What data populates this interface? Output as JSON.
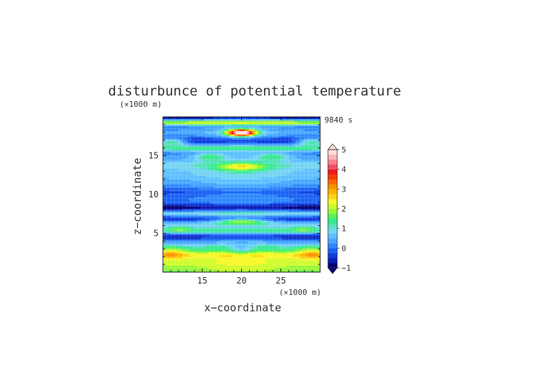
{
  "chart_data": {
    "type": "heatmap",
    "title": "disturbunce of potential temperature",
    "time_label": "9840 s",
    "xlabel": "x−coordinate",
    "ylabel": "z−coordinate",
    "x_unit": "(×1000 m)",
    "y_unit": "(×1000 m)",
    "xlim": [
      10,
      30
    ],
    "ylim": [
      0,
      20
    ],
    "x_ticks": [
      {
        "value": 15,
        "label": "15"
      },
      {
        "value": 20,
        "label": "20"
      },
      {
        "value": 25,
        "label": "25"
      }
    ],
    "y_ticks": [
      {
        "value": 5,
        "label": "5"
      },
      {
        "value": 10,
        "label": "10"
      },
      {
        "value": 15,
        "label": "15"
      }
    ],
    "colorbar": {
      "min": -1,
      "max": 5,
      "step": 0.25,
      "extend": "both",
      "ticks": [
        {
          "value": -1,
          "label": "−1"
        },
        {
          "value": 0,
          "label": "0"
        },
        {
          "value": 1,
          "label": "1"
        },
        {
          "value": 2,
          "label": "2"
        },
        {
          "value": 3,
          "label": "3"
        },
        {
          "value": 4,
          "label": "4"
        },
        {
          "value": 5,
          "label": "5"
        }
      ]
    },
    "grid": true,
    "field_bands": [
      {
        "z": 0.0,
        "amp": 1.0,
        "w": 0.5
      },
      {
        "z": 0.6,
        "amp": 1.3,
        "w": 0.7
      },
      {
        "z": 1.4,
        "amp": 1.6,
        "w": 0.7
      },
      {
        "z": 2.3,
        "amp": 2.0,
        "w": 0.6
      },
      {
        "z": 3.2,
        "amp": 1.0,
        "w": 0.5
      },
      {
        "z": 3.9,
        "amp": 0.3,
        "w": 0.5
      },
      {
        "z": 4.6,
        "amp": -0.6,
        "w": 0.4
      },
      {
        "z": 5.4,
        "amp": 1.2,
        "w": 0.45
      },
      {
        "z": 6.2,
        "amp": 0.8,
        "w": 0.4
      },
      {
        "z": 6.9,
        "amp": -0.4,
        "w": 0.35
      },
      {
        "z": 7.6,
        "amp": 1.0,
        "w": 0.35
      },
      {
        "z": 8.4,
        "amp": -0.8,
        "w": 0.45
      },
      {
        "z": 9.2,
        "amp": 0.1,
        "w": 0.8
      },
      {
        "z": 10.4,
        "amp": -0.2,
        "w": 0.5
      },
      {
        "z": 11.6,
        "amp": 0.4,
        "w": 0.8
      },
      {
        "z": 12.6,
        "amp": 0.6,
        "w": 0.7
      },
      {
        "z": 13.8,
        "amp": 1.0,
        "w": 0.8
      },
      {
        "z": 15.0,
        "amp": 0.3,
        "w": 0.6
      },
      {
        "z": 16.0,
        "amp": 1.4,
        "w": 0.4
      },
      {
        "z": 17.0,
        "amp": -0.5,
        "w": 0.5
      },
      {
        "z": 18.0,
        "amp": 0.5,
        "w": 0.6
      },
      {
        "z": 19.3,
        "amp": 2.2,
        "w": 0.35
      },
      {
        "z": 20.0,
        "amp": -0.8,
        "w": 0.3
      }
    ],
    "field_blobs": [
      {
        "x": 20.0,
        "z": 18.0,
        "amp": 5.2,
        "wx": 1.8,
        "wz": 0.45
      },
      {
        "x": 11.0,
        "z": 16.8,
        "amp": 1.8,
        "wx": 2.0,
        "wz": 0.5
      },
      {
        "x": 29.0,
        "z": 16.8,
        "amp": 1.8,
        "wx": 2.0,
        "wz": 0.5
      },
      {
        "x": 20.0,
        "z": 13.6,
        "amp": 1.4,
        "wx": 3.0,
        "wz": 0.5
      },
      {
        "x": 16.0,
        "z": 14.9,
        "amp": 1.0,
        "wx": 2.0,
        "wz": 0.5
      },
      {
        "x": 24.0,
        "z": 14.9,
        "amp": 1.0,
        "wx": 2.0,
        "wz": 0.5
      },
      {
        "x": 20.0,
        "z": 6.6,
        "amp": 1.6,
        "wx": 3.0,
        "wz": 0.35
      },
      {
        "x": 12.0,
        "z": 5.6,
        "amp": 0.8,
        "wx": 2.0,
        "wz": 0.4
      },
      {
        "x": 28.0,
        "z": 5.6,
        "amp": 0.8,
        "wx": 2.0,
        "wz": 0.4
      },
      {
        "x": 11.0,
        "z": 2.5,
        "amp": 1.0,
        "wx": 2.0,
        "wz": 0.8
      },
      {
        "x": 29.0,
        "z": 2.5,
        "amp": 1.0,
        "wx": 2.0,
        "wz": 0.8
      },
      {
        "x": 20.0,
        "z": 3.0,
        "amp": -0.8,
        "wx": 1.5,
        "wz": 0.6
      }
    ],
    "palette": [
      "#05007a",
      "#0a1cb8",
      "#0f3ee0",
      "#1b62f4",
      "#2e88fc",
      "#46a6ff",
      "#5ec0ff",
      "#73d4f3",
      "#54e3b8",
      "#34eb8f",
      "#55f25a",
      "#95f836",
      "#cffb2a",
      "#f7f728",
      "#fcd512",
      "#fcb400",
      "#fd9100",
      "#fb6800",
      "#f63a00",
      "#ee1a1a",
      "#f24e64",
      "#f8828c",
      "#fdb2b8",
      "#ffdcdc"
    ]
  }
}
